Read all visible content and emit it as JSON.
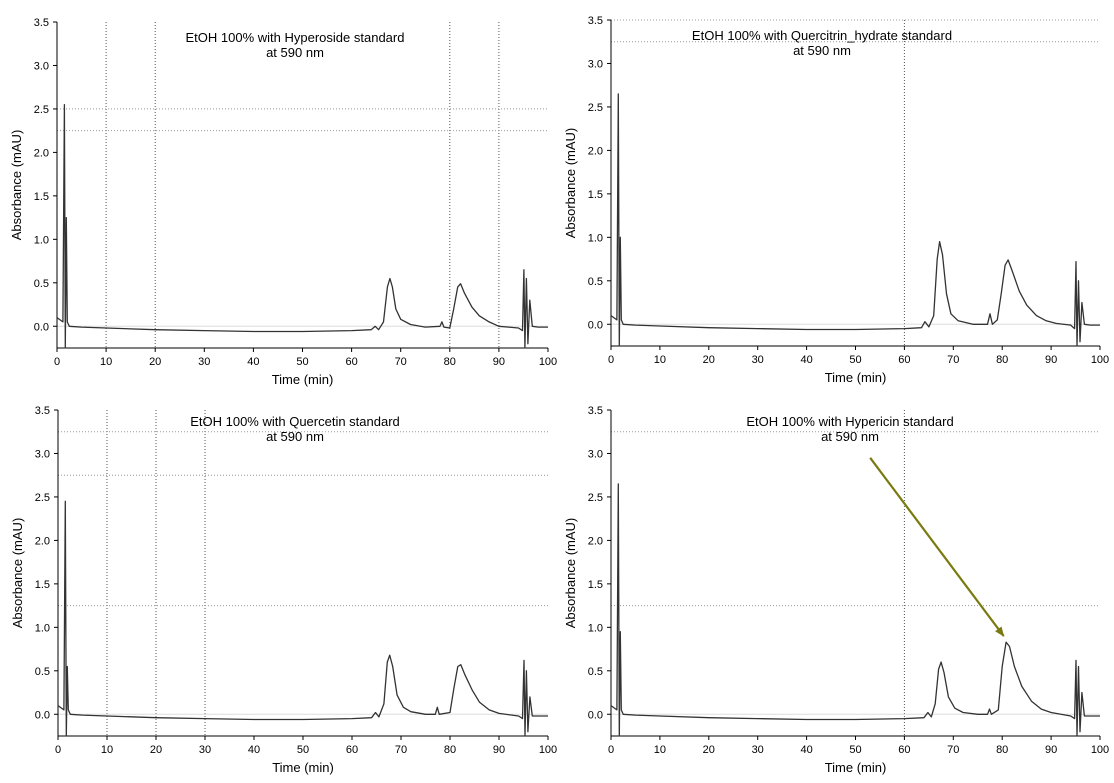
{
  "chart_data": [
    {
      "type": "line",
      "title": "EtOH 100% with Hyperoside standard",
      "subtitle": "at 590 nm",
      "xlabel": "Time (min)",
      "ylabel": "Absorbance (mAU)",
      "xlim": [
        0,
        100
      ],
      "ylim": [
        -0.25,
        3.5
      ],
      "xticks": [
        "0",
        "10",
        "20",
        "30",
        "40",
        "50",
        "60",
        "70",
        "80",
        "90",
        "100"
      ],
      "yticks": [
        "0.0",
        "0.5",
        "1.0",
        "1.5",
        "2.0",
        "2.5",
        "3.0",
        "3.5"
      ],
      "vlines": [
        10,
        20,
        80,
        90
      ],
      "hlines": [
        2.25,
        2.5
      ],
      "series": [
        {
          "color": "#333333",
          "points": [
            [
              0,
              0.1
            ],
            [
              1.2,
              0.05
            ],
            [
              1.5,
              2.55
            ],
            [
              1.7,
              -0.25
            ],
            [
              1.9,
              1.25
            ],
            [
              2.1,
              0.05
            ],
            [
              2.5,
              0.0
            ],
            [
              5,
              -0.01
            ],
            [
              10,
              -0.02
            ],
            [
              20,
              -0.04
            ],
            [
              30,
              -0.05
            ],
            [
              40,
              -0.06
            ],
            [
              50,
              -0.06
            ],
            [
              60,
              -0.05
            ],
            [
              64,
              -0.04
            ],
            [
              64.8,
              0.0
            ],
            [
              65.5,
              -0.04
            ],
            [
              66.5,
              0.05
            ],
            [
              67.3,
              0.45
            ],
            [
              67.8,
              0.55
            ],
            [
              68.3,
              0.45
            ],
            [
              69,
              0.2
            ],
            [
              70,
              0.08
            ],
            [
              72,
              0.02
            ],
            [
              75,
              -0.01
            ],
            [
              78,
              0.0
            ],
            [
              78.4,
              0.05
            ],
            [
              78.8,
              -0.01
            ],
            [
              80,
              -0.02
            ],
            [
              80.8,
              0.2
            ],
            [
              81.6,
              0.45
            ],
            [
              82.2,
              0.49
            ],
            [
              83,
              0.38
            ],
            [
              84.5,
              0.22
            ],
            [
              86,
              0.12
            ],
            [
              88,
              0.05
            ],
            [
              90,
              0.0
            ],
            [
              92,
              -0.01
            ],
            [
              94,
              -0.02
            ],
            [
              94.8,
              -0.05
            ],
            [
              95.1,
              0.65
            ],
            [
              95.3,
              -0.25
            ],
            [
              95.6,
              0.55
            ],
            [
              95.9,
              -0.2
            ],
            [
              96.3,
              0.3
            ],
            [
              96.8,
              0.0
            ],
            [
              98,
              -0.01
            ],
            [
              100,
              -0.01
            ]
          ]
        }
      ]
    },
    {
      "type": "line",
      "title": "EtOH 100% with Quercitrin_hydrate standard",
      "subtitle": "at 590 nm",
      "xlabel": "Time (min)",
      "ylabel": "Absorbance (mAU)",
      "xlim": [
        0,
        100
      ],
      "ylim": [
        -0.25,
        3.5
      ],
      "xticks": [
        "0",
        "10",
        "20",
        "30",
        "40",
        "50",
        "60",
        "70",
        "80",
        "90",
        "100"
      ],
      "yticks": [
        "0.0",
        "0.5",
        "1.0",
        "1.5",
        "2.0",
        "2.5",
        "3.0",
        "3.5"
      ],
      "vlines": [
        60
      ],
      "hlines": [
        3.5,
        3.25
      ],
      "series": [
        {
          "color": "#333333",
          "points": [
            [
              0,
              0.1
            ],
            [
              1.2,
              0.05
            ],
            [
              1.5,
              2.65
            ],
            [
              1.7,
              -0.25
            ],
            [
              1.9,
              1.0
            ],
            [
              2.1,
              0.05
            ],
            [
              2.5,
              0.0
            ],
            [
              5,
              -0.01
            ],
            [
              10,
              -0.02
            ],
            [
              20,
              -0.04
            ],
            [
              30,
              -0.05
            ],
            [
              40,
              -0.06
            ],
            [
              50,
              -0.06
            ],
            [
              60,
              -0.05
            ],
            [
              63.5,
              -0.04
            ],
            [
              64.2,
              0.03
            ],
            [
              65,
              -0.03
            ],
            [
              66,
              0.1
            ],
            [
              66.7,
              0.75
            ],
            [
              67.2,
              0.95
            ],
            [
              67.8,
              0.8
            ],
            [
              68.6,
              0.35
            ],
            [
              69.5,
              0.12
            ],
            [
              71,
              0.04
            ],
            [
              74,
              0.0
            ],
            [
              77,
              0.0
            ],
            [
              77.5,
              0.12
            ],
            [
              78,
              0.0
            ],
            [
              79,
              0.05
            ],
            [
              79.8,
              0.35
            ],
            [
              80.6,
              0.68
            ],
            [
              81.2,
              0.74
            ],
            [
              82,
              0.62
            ],
            [
              83.5,
              0.38
            ],
            [
              85,
              0.22
            ],
            [
              87,
              0.1
            ],
            [
              89,
              0.04
            ],
            [
              91,
              0.01
            ],
            [
              94,
              -0.01
            ],
            [
              94.8,
              -0.05
            ],
            [
              95.1,
              0.72
            ],
            [
              95.3,
              -0.25
            ],
            [
              95.6,
              0.5
            ],
            [
              95.9,
              -0.2
            ],
            [
              96.3,
              0.25
            ],
            [
              96.8,
              0.0
            ],
            [
              98,
              -0.01
            ],
            [
              100,
              -0.01
            ]
          ]
        }
      ]
    },
    {
      "type": "line",
      "title": "EtOH 100% with Quercetin standard",
      "subtitle": "at 590 nm",
      "xlabel": "Time (min)",
      "ylabel": "Absorbance (mAU)",
      "xlim": [
        0,
        100
      ],
      "ylim": [
        -0.25,
        3.5
      ],
      "xticks": [
        "0",
        "10",
        "20",
        "30",
        "40",
        "50",
        "60",
        "70",
        "80",
        "90",
        "100"
      ],
      "yticks": [
        "0.0",
        "0.5",
        "1.0",
        "1.5",
        "2.0",
        "2.5",
        "3.0",
        "3.5"
      ],
      "vlines": [
        10,
        20,
        30
      ],
      "hlines": [
        3.25,
        2.75,
        1.25
      ],
      "series": [
        {
          "color": "#333333",
          "points": [
            [
              0,
              0.1
            ],
            [
              1.2,
              0.05
            ],
            [
              1.5,
              2.45
            ],
            [
              1.7,
              -0.25
            ],
            [
              1.9,
              0.55
            ],
            [
              2.1,
              0.05
            ],
            [
              2.5,
              0.0
            ],
            [
              5,
              -0.01
            ],
            [
              10,
              -0.02
            ],
            [
              20,
              -0.04
            ],
            [
              30,
              -0.05
            ],
            [
              40,
              -0.06
            ],
            [
              50,
              -0.06
            ],
            [
              60,
              -0.05
            ],
            [
              64,
              -0.04
            ],
            [
              64.8,
              0.02
            ],
            [
              65.5,
              -0.03
            ],
            [
              66.5,
              0.12
            ],
            [
              67.2,
              0.6
            ],
            [
              67.7,
              0.68
            ],
            [
              68.3,
              0.55
            ],
            [
              69.2,
              0.22
            ],
            [
              70.5,
              0.08
            ],
            [
              72,
              0.03
            ],
            [
              75,
              0.0
            ],
            [
              77,
              0.0
            ],
            [
              77.4,
              0.08
            ],
            [
              77.8,
              0.0
            ],
            [
              80,
              0.02
            ],
            [
              80.8,
              0.3
            ],
            [
              81.6,
              0.55
            ],
            [
              82.2,
              0.57
            ],
            [
              83,
              0.46
            ],
            [
              84.5,
              0.28
            ],
            [
              86,
              0.14
            ],
            [
              88,
              0.05
            ],
            [
              90,
              0.01
            ],
            [
              94,
              -0.02
            ],
            [
              94.8,
              -0.05
            ],
            [
              95.1,
              0.62
            ],
            [
              95.3,
              -0.25
            ],
            [
              95.6,
              0.5
            ],
            [
              95.9,
              -0.2
            ],
            [
              96.3,
              0.2
            ],
            [
              96.8,
              -0.02
            ],
            [
              98,
              -0.02
            ],
            [
              100,
              -0.02
            ]
          ]
        }
      ]
    },
    {
      "type": "line",
      "title": "EtOH 100% with Hypericin standard",
      "subtitle": "at 590 nm",
      "xlabel": "Time (min)",
      "ylabel": "Absorbance (mAU)",
      "xlim": [
        0,
        100
      ],
      "ylim": [
        -0.25,
        3.5
      ],
      "xticks": [
        "0",
        "10",
        "20",
        "30",
        "40",
        "50",
        "60",
        "70",
        "80",
        "90",
        "100"
      ],
      "yticks": [
        "0.0",
        "0.5",
        "1.0",
        "1.5",
        "2.0",
        "2.5",
        "3.0",
        "3.5"
      ],
      "vlines": [
        60
      ],
      "hlines": [
        3.25,
        1.25
      ],
      "annotation": {
        "type": "arrow",
        "color": "#7a7a10",
        "from": [
          53,
          2.95
        ],
        "to": [
          80.3,
          0.9
        ]
      },
      "series": [
        {
          "color": "#333333",
          "points": [
            [
              0,
              0.1
            ],
            [
              1.2,
              0.05
            ],
            [
              1.5,
              2.65
            ],
            [
              1.7,
              -0.25
            ],
            [
              1.9,
              0.95
            ],
            [
              2.1,
              0.05
            ],
            [
              2.5,
              0.0
            ],
            [
              5,
              -0.01
            ],
            [
              10,
              -0.02
            ],
            [
              20,
              -0.04
            ],
            [
              30,
              -0.05
            ],
            [
              40,
              -0.06
            ],
            [
              50,
              -0.06
            ],
            [
              60,
              -0.05
            ],
            [
              64,
              -0.04
            ],
            [
              64.8,
              0.02
            ],
            [
              65.5,
              -0.03
            ],
            [
              66.3,
              0.12
            ],
            [
              67,
              0.52
            ],
            [
              67.5,
              0.6
            ],
            [
              68.1,
              0.48
            ],
            [
              69,
              0.2
            ],
            [
              70.3,
              0.07
            ],
            [
              72,
              0.02
            ],
            [
              75,
              0.0
            ],
            [
              77,
              0.0
            ],
            [
              77.4,
              0.06
            ],
            [
              77.8,
              0.0
            ],
            [
              79.2,
              0.05
            ],
            [
              80,
              0.55
            ],
            [
              80.8,
              0.83
            ],
            [
              81.5,
              0.78
            ],
            [
              82.5,
              0.55
            ],
            [
              84,
              0.32
            ],
            [
              86,
              0.15
            ],
            [
              88,
              0.06
            ],
            [
              90,
              0.02
            ],
            [
              94,
              -0.02
            ],
            [
              94.8,
              -0.05
            ],
            [
              95.1,
              0.62
            ],
            [
              95.3,
              -0.25
            ],
            [
              95.6,
              0.55
            ],
            [
              95.9,
              -0.2
            ],
            [
              96.3,
              0.25
            ],
            [
              96.8,
              -0.02
            ],
            [
              98,
              -0.02
            ],
            [
              100,
              -0.02
            ]
          ]
        }
      ]
    }
  ]
}
